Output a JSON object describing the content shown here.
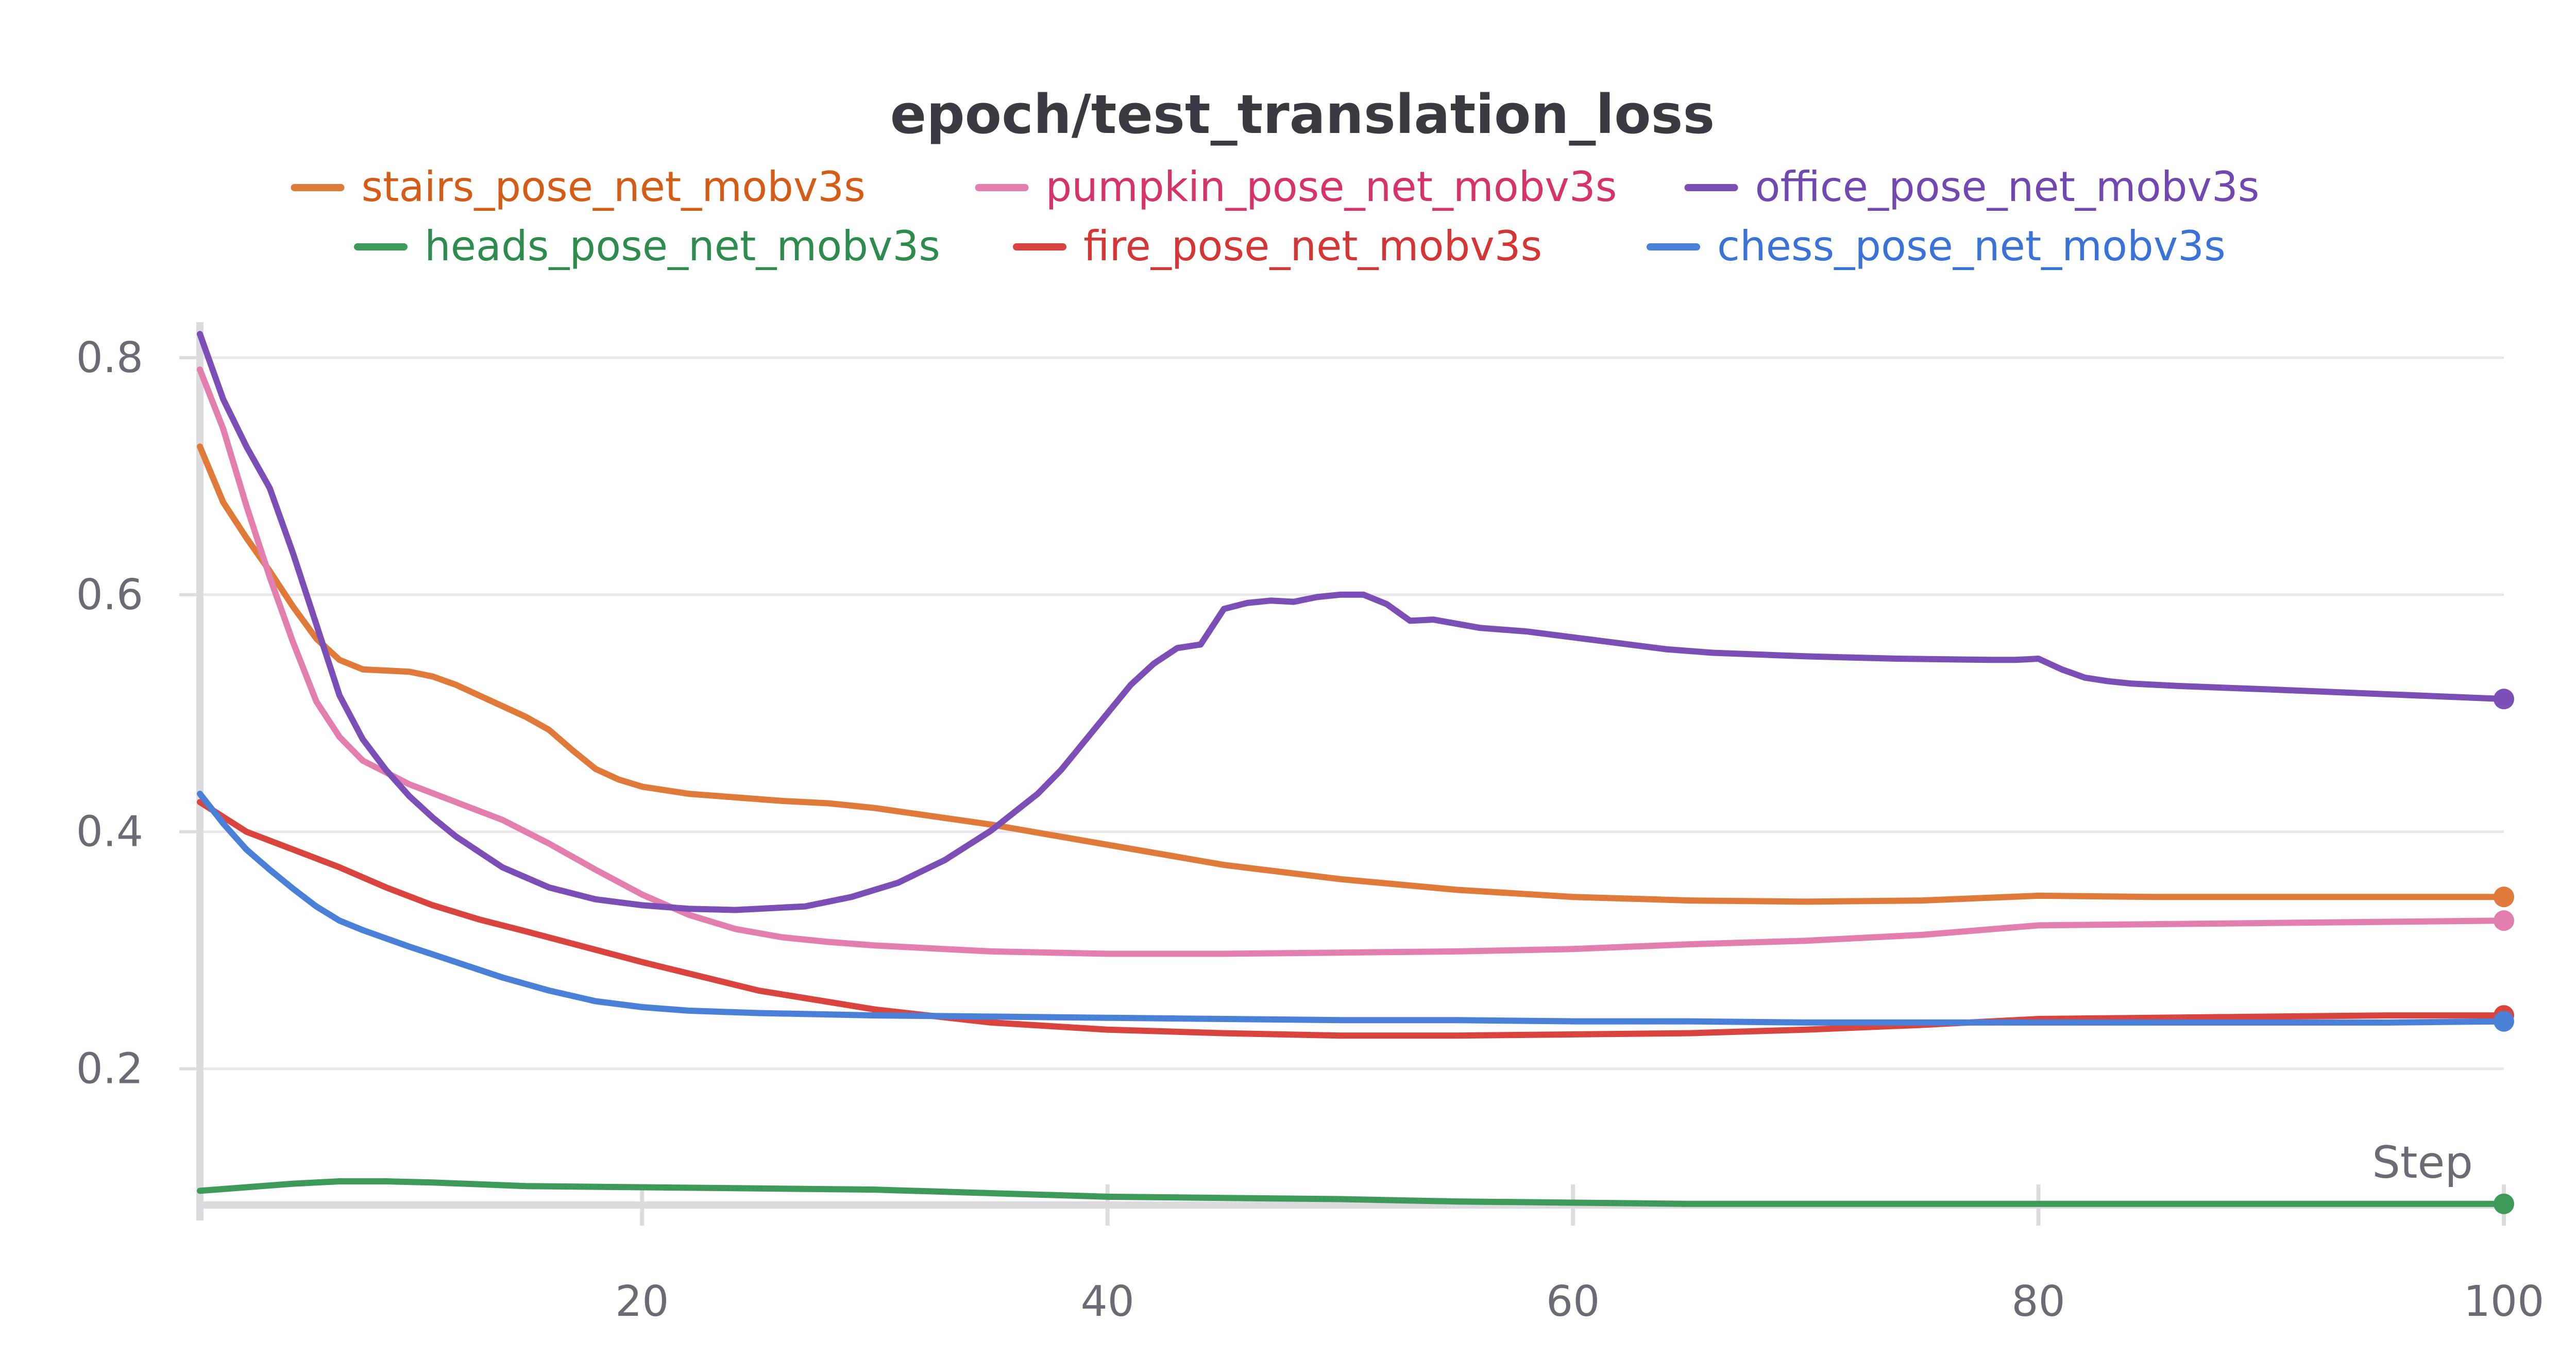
{
  "chart_data": {
    "type": "line",
    "title": "epoch/test_translation_loss",
    "xlabel": "Step",
    "ylabel": "",
    "xlim": [
      1,
      100
    ],
    "ylim": [
      0.085,
      0.83
    ],
    "xticks": [
      20,
      40,
      60,
      80,
      100
    ],
    "yticks": [
      0.2,
      0.4,
      0.6,
      0.8
    ],
    "ytick_labels": [
      "0.2",
      "0.4",
      "0.6",
      "0.8"
    ],
    "grid": true,
    "legend_position": "top-center",
    "series": [
      {
        "name": "stairs_pose_net_mobv3s",
        "color": "#e07a3a",
        "label_color": "#d45c17",
        "x": [
          1,
          2,
          3,
          4,
          5,
          6,
          7,
          8,
          9,
          10,
          11,
          12,
          13,
          14,
          15,
          16,
          17,
          18,
          19,
          20,
          21,
          22,
          24,
          26,
          28,
          30,
          35,
          40,
          45,
          50,
          55,
          60,
          65,
          70,
          75,
          80,
          85,
          90,
          95,
          100
        ],
        "y": [
          0.725,
          0.678,
          0.648,
          0.62,
          0.59,
          0.563,
          0.545,
          0.537,
          0.536,
          0.535,
          0.531,
          0.524,
          0.515,
          0.506,
          0.497,
          0.486,
          0.469,
          0.453,
          0.444,
          0.438,
          0.435,
          0.432,
          0.429,
          0.426,
          0.424,
          0.42,
          0.406,
          0.389,
          0.372,
          0.36,
          0.351,
          0.345,
          0.342,
          0.341,
          0.342,
          0.346,
          0.345,
          0.345,
          0.345,
          0.345
        ]
      },
      {
        "name": "pumpkin_pose_net_mobv3s",
        "color": "#e37fae",
        "label_color": "#d6336c",
        "x": [
          1,
          2,
          3,
          4,
          5,
          6,
          7,
          8,
          9,
          10,
          12,
          14,
          16,
          18,
          20,
          22,
          24,
          26,
          28,
          30,
          35,
          40,
          45,
          50,
          55,
          60,
          65,
          70,
          75,
          80,
          85,
          90,
          95,
          100
        ],
        "y": [
          0.79,
          0.74,
          0.675,
          0.615,
          0.56,
          0.51,
          0.48,
          0.46,
          0.45,
          0.44,
          0.425,
          0.41,
          0.39,
          0.368,
          0.347,
          0.33,
          0.318,
          0.311,
          0.307,
          0.304,
          0.299,
          0.297,
          0.297,
          0.298,
          0.299,
          0.301,
          0.305,
          0.308,
          0.313,
          0.321,
          0.322,
          0.323,
          0.324,
          0.325
        ]
      },
      {
        "name": "office_pose_net_mobv3s",
        "color": "#7b4fb5",
        "label_color": "#7048b0",
        "x": [
          1,
          2,
          3,
          4,
          5,
          6,
          7,
          8,
          9,
          10,
          11,
          12,
          14,
          16,
          18,
          20,
          22,
          24,
          25,
          27,
          29,
          31,
          33,
          35,
          37,
          38,
          39,
          40,
          41,
          42,
          43,
          44,
          45,
          46,
          47,
          48,
          49,
          50,
          51,
          52,
          53,
          54,
          56,
          58,
          60,
          62,
          64,
          66,
          70,
          74,
          78,
          79,
          80,
          81,
          82,
          83,
          84,
          86,
          90,
          95,
          100
        ],
        "y": [
          0.82,
          0.765,
          0.725,
          0.69,
          0.635,
          0.575,
          0.515,
          0.478,
          0.452,
          0.43,
          0.412,
          0.396,
          0.37,
          0.353,
          0.343,
          0.338,
          0.335,
          0.334,
          0.335,
          0.337,
          0.345,
          0.357,
          0.376,
          0.401,
          0.432,
          0.452,
          0.476,
          0.5,
          0.524,
          0.542,
          0.555,
          0.558,
          0.588,
          0.593,
          0.595,
          0.594,
          0.598,
          0.6,
          0.6,
          0.592,
          0.578,
          0.579,
          0.572,
          0.569,
          0.564,
          0.559,
          0.554,
          0.551,
          0.548,
          0.546,
          0.545,
          0.545,
          0.546,
          0.537,
          0.53,
          0.527,
          0.525,
          0.523,
          0.52,
          0.516,
          0.512
        ]
      },
      {
        "name": "heads_pose_net_mobv3s",
        "color": "#3d9a5a",
        "label_color": "#2e8b4e",
        "x": [
          1,
          3,
          5,
          7,
          9,
          11,
          15,
          20,
          25,
          30,
          35,
          40,
          45,
          50,
          55,
          60,
          65,
          70,
          75,
          80,
          85,
          90,
          95,
          100
        ],
        "y": [
          0.097,
          0.1,
          0.103,
          0.105,
          0.105,
          0.104,
          0.101,
          0.1,
          0.099,
          0.098,
          0.095,
          0.092,
          0.091,
          0.09,
          0.088,
          0.087,
          0.086,
          0.086,
          0.086,
          0.086,
          0.086,
          0.086,
          0.086,
          0.086
        ]
      },
      {
        "name": "fire_pose_net_mobv3s",
        "color": "#d9443f",
        "label_color": "#d43535",
        "x": [
          1,
          3,
          5,
          7,
          9,
          11,
          13,
          15,
          20,
          25,
          30,
          35,
          40,
          45,
          50,
          55,
          60,
          65,
          70,
          75,
          80,
          85,
          90,
          95,
          100
        ],
        "y": [
          0.425,
          0.4,
          0.385,
          0.37,
          0.353,
          0.338,
          0.326,
          0.316,
          0.29,
          0.266,
          0.25,
          0.239,
          0.233,
          0.23,
          0.228,
          0.228,
          0.229,
          0.23,
          0.233,
          0.237,
          0.242,
          0.243,
          0.244,
          0.245,
          0.245
        ]
      },
      {
        "name": "chess_pose_net_mobv3s",
        "color": "#4a80d8",
        "label_color": "#3a72d6",
        "x": [
          1,
          2,
          3,
          4,
          5,
          6,
          7,
          8,
          10,
          12,
          14,
          16,
          18,
          20,
          22,
          25,
          30,
          35,
          40,
          45,
          50,
          55,
          60,
          65,
          70,
          75,
          80,
          85,
          90,
          95,
          100
        ],
        "y": [
          0.432,
          0.407,
          0.385,
          0.368,
          0.352,
          0.337,
          0.325,
          0.317,
          0.303,
          0.29,
          0.277,
          0.266,
          0.257,
          0.252,
          0.249,
          0.247,
          0.245,
          0.244,
          0.243,
          0.242,
          0.241,
          0.241,
          0.24,
          0.24,
          0.239,
          0.239,
          0.239,
          0.239,
          0.239,
          0.239,
          0.24
        ]
      }
    ]
  }
}
